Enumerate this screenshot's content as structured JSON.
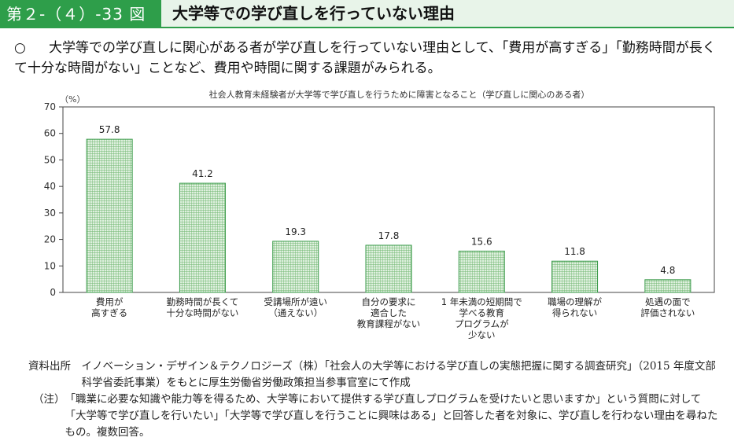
{
  "header": {
    "figure_number": "第２-（４）-33 図",
    "title": "大学等での学び直しを行っていない理由"
  },
  "summary": {
    "bullet": "○",
    "text": "大学等での学び直しに関心がある者が学び直しを行っていない理由として、「費用が高すぎる」「勤務時間が長くて十分な時間がない」ことなど、費用や時間に関する課題がみられる。"
  },
  "chart_data": {
    "type": "bar",
    "title": "社会人教育未経験者が大学等で学び直しを行うために障害となること（学び直しに関心のある者）",
    "ylabel": "（%）",
    "ylim": [
      0,
      70
    ],
    "yticks": [
      0,
      10,
      20,
      30,
      40,
      50,
      60,
      70
    ],
    "grid": false,
    "categories": [
      "費用が\n高すぎる",
      "勤務時間が長くて\n十分な時間がない",
      "受講場所が遠い\n（通えない）",
      "自分の要求に\n適合した\n教育課程がない",
      "1 年未満の短期間で\n学べる教育\nプログラムが\n少ない",
      "職場の理解が\n得られない",
      "処遇の面で\n評価されない"
    ],
    "values": [
      57.8,
      41.2,
      19.3,
      17.8,
      15.6,
      11.8,
      4.8
    ],
    "value_labels": [
      "57.8",
      "41.2",
      "19.3",
      "17.8",
      "15.6",
      "11.8",
      "4.8"
    ],
    "colors": {
      "bar_fill": "#bfe0bf",
      "bar_stroke": "#3a9a4a",
      "hatch": "#5aa85a"
    }
  },
  "source": {
    "label": "資料出所　",
    "text": "イノベーション・デザイン＆テクノロジーズ（株）「社会人の大学等における学び直しの実態把握に関する調査研究」（2015 年度文部科学省委託事業）をもとに厚生労働省労働政策担当参事官室にて作成",
    "note_label": "（注）",
    "note": "「職業に必要な知識や能力等を得るため、大学等において提供する学び直しプログラムを受けたいと思いますか」という質問に対して「大学等で学び直しを行いたい」「大学等で学び直しを行うことに興味はある」と回答した者を対象に、学び直しを行わない理由を尋ねたもの。複数回答。"
  }
}
